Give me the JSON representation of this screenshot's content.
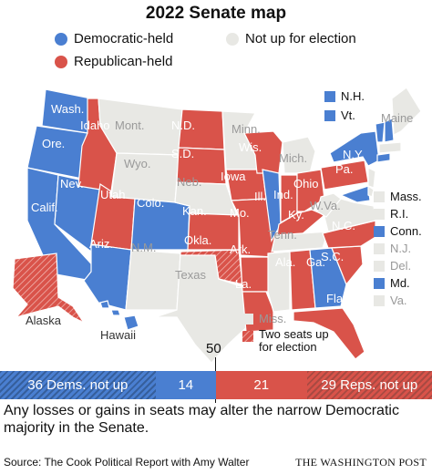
{
  "title": "2022 Senate map",
  "colors": {
    "democratic": "#4a7fd1",
    "republican": "#d9534a",
    "not_up": "#e8e8e4",
    "dem_hatch": "#365f9c",
    "rep_hatch": "#a94a42"
  },
  "legend": {
    "dem": "Democratic-held",
    "rep": "Republican-held",
    "none": "Not up for election"
  },
  "map_labels": {
    "wash": "Wash.",
    "ore": "Ore.",
    "calif": "Calif.",
    "nev": "Nev.",
    "idaho": "Idaho",
    "mont": "Mont.",
    "wyo": "Wyo.",
    "utah": "Utah",
    "colo": "Colo.",
    "ariz": "Ariz.",
    "nm": "N.M.",
    "texas": "Texas",
    "nd": "N.D.",
    "sd": "S.D.",
    "neb": "Neb.",
    "kan": "Kan.",
    "okla": "Okla.",
    "minn": "Minn.",
    "iowa": "Iowa",
    "mo": "Mo.",
    "ark": "Ark.",
    "la": "La.",
    "wis": "Wis.",
    "ill": "Ill.",
    "mich": "Mich.",
    "ind": "Ind.",
    "ohio": "Ohio",
    "ky": "Ky.",
    "tenn": "Tenn.",
    "miss": "Miss.",
    "ala": "Ala.",
    "ga": "Ga.",
    "fla": "Fla.",
    "sc": "S.C.",
    "nc": "N.C.",
    "va": "Va.",
    "wva": "W.Va.",
    "pa": "Pa.",
    "ny": "N.Y.",
    "maine": "Maine",
    "alaska": "Alaska",
    "hawaii": "Hawaii"
  },
  "side_keys": {
    "nh": "N.H.",
    "vt": "Vt.",
    "mass": "Mass.",
    "ri": "R.I.",
    "conn": "Conn.",
    "nj": "N.J.",
    "del": "Del.",
    "md": "Md.",
    "va": "Va."
  },
  "miss_key": "Miss.",
  "two_seats_line1": "Two seats up",
  "two_seats_line2": "for election",
  "bar": {
    "marker": "50",
    "dem_not_up": "36 Dems. not up",
    "dem_up": "14",
    "rep_up": "21",
    "rep_not_up": "29 Reps. not up",
    "dem_not_up_value": 36,
    "dem_up_value": 14,
    "rep_up_value": 21,
    "rep_not_up_value": 29
  },
  "note": "Any losses or gains in seats may alter the narrow Democratic majority in the Senate.",
  "source": "Source: The Cook Political Report with Amy Walter",
  "credit": "THE WASHINGTON POST"
}
